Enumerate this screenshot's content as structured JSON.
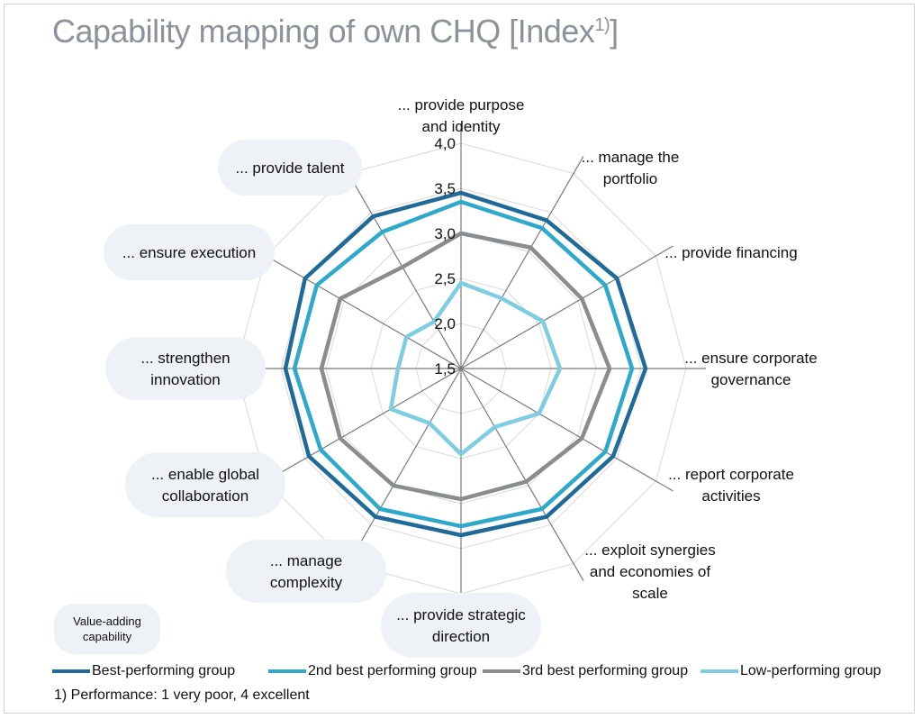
{
  "title": "Capability mapping of own CHQ  [Index",
  "title_sup": "1)",
  "title_end": "]",
  "badge": [
    "Value-adding",
    "capability"
  ],
  "footnote": "1) Performance: 1 very poor, 4 excellent",
  "colors": {
    "best": "#1f6a98",
    "second": "#2ea9cc",
    "third": "#8a8d90",
    "low": "#7fcde3",
    "spoke": "#7a7a7a",
    "grid": "#d9d9d9",
    "pill": "#eef1f5"
  },
  "chart_data": {
    "type": "radar",
    "title": "Capability mapping of own CHQ  [Index1)]",
    "rmin": 1.5,
    "rmax": 4.0,
    "ticks": [
      "1,5",
      "2,0",
      "2,5",
      "3,0",
      "3,5",
      "4,0"
    ],
    "tick_values": [
      1.5,
      2.0,
      2.5,
      3.0,
      3.5,
      4.0
    ],
    "axes": [
      [
        "... provide purpose",
        "and identity"
      ],
      [
        "... manage the",
        "portfolio"
      ],
      [
        "... provide financing"
      ],
      [
        "... ensure corporate",
        "governance"
      ],
      [
        "... report corporate",
        "activities"
      ],
      [
        "... exploit synergies",
        "and economies of",
        "scale"
      ],
      [
        "... provide strategic",
        "direction"
      ],
      [
        "... manage",
        "complexity"
      ],
      [
        "... enable global",
        "collaboration"
      ],
      [
        "... strengthen",
        "innovation"
      ],
      [
        "... ensure execution"
      ],
      [
        "... provide talent"
      ]
    ],
    "highlighted_axes": [
      6,
      7,
      8,
      9,
      10,
      11
    ],
    "series": [
      {
        "name": "Best-performing group",
        "color": "#1f6a98",
        "values": [
          3.45,
          3.4,
          3.5,
          3.55,
          3.45,
          3.4,
          3.35,
          3.4,
          3.45,
          3.45,
          3.5,
          3.45
        ]
      },
      {
        "name": "2nd best performing group",
        "color": "#2ea9cc",
        "values": [
          3.35,
          3.3,
          3.35,
          3.4,
          3.35,
          3.3,
          3.25,
          3.3,
          3.3,
          3.35,
          3.35,
          3.25
        ]
      },
      {
        "name": "3rd best performing group",
        "color": "#8a8d90",
        "values": [
          3.0,
          3.05,
          3.05,
          3.15,
          3.05,
          2.95,
          2.95,
          3.0,
          3.05,
          3.05,
          3.05,
          2.8
        ]
      },
      {
        "name": "Low-performing group",
        "color": "#7fcde3",
        "values": [
          2.45,
          2.4,
          2.55,
          2.6,
          2.5,
          2.25,
          2.45,
          2.2,
          2.4,
          2.2,
          2.2,
          2.1
        ]
      }
    ],
    "legend_position": "bottom"
  }
}
